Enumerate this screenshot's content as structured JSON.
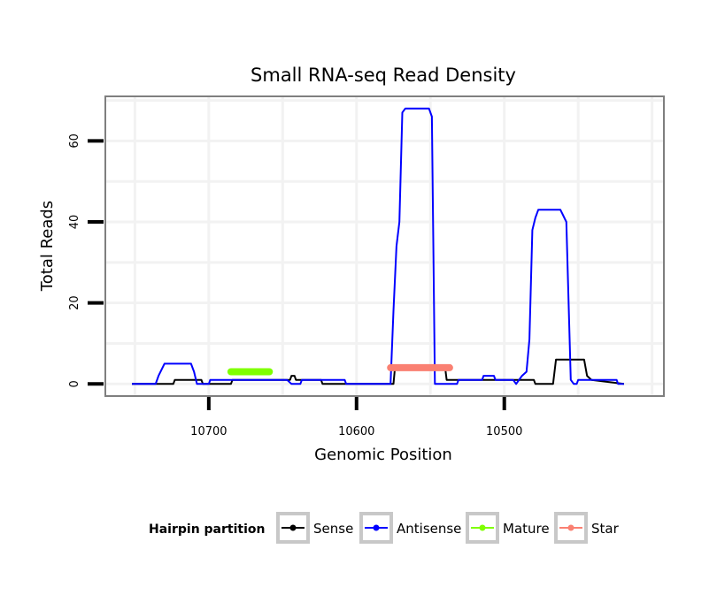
{
  "chart_data": {
    "type": "line",
    "title": "Small RNA-seq Read Density",
    "xlabel": "Genomic Position",
    "ylabel": "Total Reads",
    "x_reversed": true,
    "xlim": [
      10770,
      10392
    ],
    "ylim": [
      -3,
      71
    ],
    "x_ticks": [
      10700,
      10600,
      10500
    ],
    "y_ticks": [
      0,
      20,
      40,
      60
    ],
    "grid": true,
    "legend": {
      "title": "Hairpin partition",
      "position": "bottom",
      "entries": [
        {
          "name": "Sense",
          "color": "#000000"
        },
        {
          "name": "Antisense",
          "color": "#0000ff"
        },
        {
          "name": "Mature",
          "color": "#7fff00"
        },
        {
          "name": "Star",
          "color": "#fa8072"
        }
      ]
    },
    "series": [
      {
        "name": "Sense",
        "color": "#000000",
        "points": [
          [
            10752,
            0
          ],
          [
            10724,
            0
          ],
          [
            10723,
            1
          ],
          [
            10705,
            1
          ],
          [
            10704,
            0
          ],
          [
            10685,
            0
          ],
          [
            10684,
            1
          ],
          [
            10645,
            1
          ],
          [
            10644,
            2
          ],
          [
            10642,
            2
          ],
          [
            10641,
            1
          ],
          [
            10624,
            1
          ],
          [
            10623,
            0
          ],
          [
            10580,
            0
          ],
          [
            10575,
            0
          ],
          [
            10574,
            4
          ],
          [
            10540,
            4
          ],
          [
            10539,
            1
          ],
          [
            10480,
            1
          ],
          [
            10479,
            0
          ],
          [
            10467,
            0
          ],
          [
            10465,
            6
          ],
          [
            10446,
            6
          ],
          [
            10444,
            2
          ],
          [
            10441,
            1
          ],
          [
            10419,
            0
          ]
        ]
      },
      {
        "name": "Antisense",
        "color": "#0000ff",
        "points": [
          [
            10752,
            0
          ],
          [
            10736,
            0
          ],
          [
            10734,
            2
          ],
          [
            10730,
            5
          ],
          [
            10712,
            5
          ],
          [
            10710,
            3
          ],
          [
            10708,
            0
          ],
          [
            10700,
            0
          ],
          [
            10699,
            1
          ],
          [
            10647,
            1
          ],
          [
            10644,
            0
          ],
          [
            10638,
            0
          ],
          [
            10637,
            1
          ],
          [
            10608,
            1
          ],
          [
            10607,
            0
          ],
          [
            10577,
            0
          ],
          [
            10575,
            18
          ],
          [
            10573,
            34
          ],
          [
            10571,
            40
          ],
          [
            10569,
            67
          ],
          [
            10567,
            68
          ],
          [
            10557,
            68
          ],
          [
            10551,
            68
          ],
          [
            10549,
            66
          ],
          [
            10547,
            0
          ],
          [
            10532,
            0
          ],
          [
            10531,
            1
          ],
          [
            10515,
            1
          ],
          [
            10514,
            2
          ],
          [
            10507,
            2
          ],
          [
            10506,
            1
          ],
          [
            10494,
            1
          ],
          [
            10492,
            0
          ],
          [
            10488,
            2
          ],
          [
            10485,
            3
          ],
          [
            10483,
            11
          ],
          [
            10481,
            38
          ],
          [
            10479,
            41
          ],
          [
            10477,
            43
          ],
          [
            10462,
            43
          ],
          [
            10458,
            40
          ],
          [
            10455,
            1
          ],
          [
            10453,
            0
          ],
          [
            10451,
            0
          ],
          [
            10450,
            1
          ],
          [
            10424,
            1
          ],
          [
            10423,
            0
          ],
          [
            10419,
            0
          ]
        ]
      },
      {
        "name": "Mature",
        "color": "#7fff00",
        "points": [
          [
            10685,
            3
          ],
          [
            10659,
            3
          ]
        ]
      },
      {
        "name": "Star",
        "color": "#fa8072",
        "points": [
          [
            10577,
            4
          ],
          [
            10552,
            4
          ],
          [
            10551,
            4
          ],
          [
            10537,
            4
          ]
        ]
      }
    ]
  }
}
